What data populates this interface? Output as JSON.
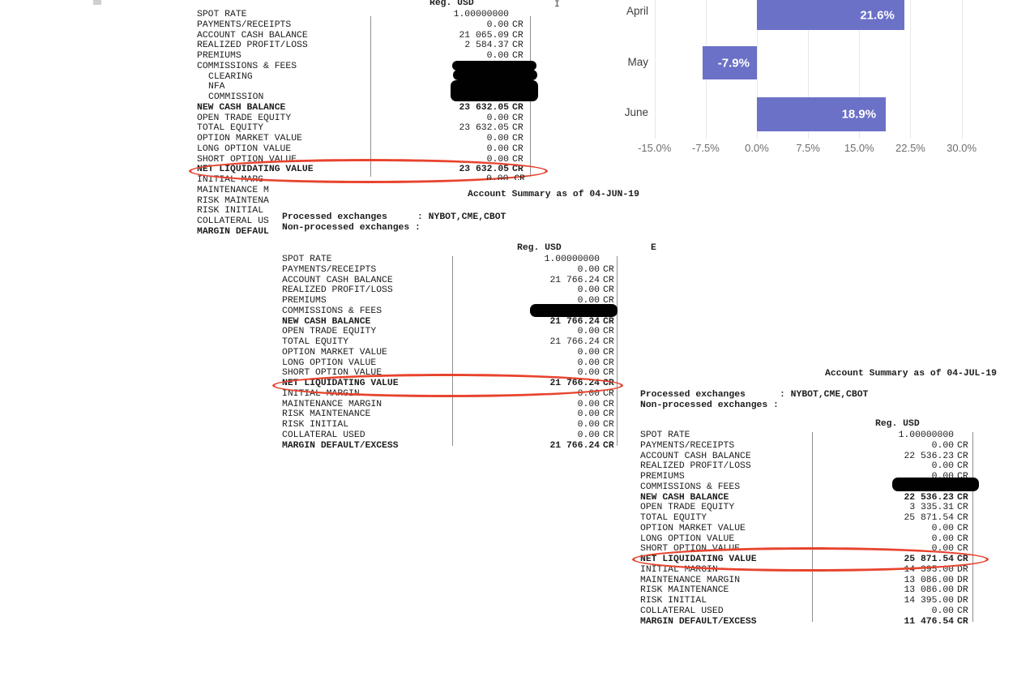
{
  "chart_data": {
    "type": "bar",
    "orientation": "horizontal",
    "title": "",
    "categories": [
      "April",
      "May",
      "June"
    ],
    "values": [
      21.6,
      -7.9,
      18.9
    ],
    "data_labels": [
      "21.6%",
      "-7.9%",
      "18.9%"
    ],
    "x_ticks": [
      "-15.0%",
      "-7.5%",
      "0.0%",
      "7.5%",
      "15.0%",
      "22.5%",
      "30.0%"
    ],
    "x_tick_values": [
      -15,
      -7.5,
      0,
      7.5,
      15,
      22.5,
      30
    ],
    "xlim": [
      -20.5,
      35.5
    ],
    "grid": true,
    "legend": false,
    "bar_color": "#6b71c7",
    "data_label_color": "#ffffff"
  },
  "statements": [
    {
      "title": null,
      "currency_header": "Reg. USD",
      "rows": [
        {
          "label": "SPOT RATE",
          "value": "1.00000000",
          "suffix": ""
        },
        {
          "label": "PAYMENTS/RECEIPTS",
          "value": "0.00",
          "suffix": "CR"
        },
        {
          "label": "ACCOUNT CASH BALANCE",
          "value": "21 065.09",
          "suffix": "CR"
        },
        {
          "label": "REALIZED PROFIT/LOSS",
          "value": "2 584.37",
          "suffix": "CR"
        },
        {
          "label": "PREMIUMS",
          "value": "0.00",
          "suffix": "CR"
        },
        {
          "label": "COMMISSIONS & FEES",
          "redacted": true
        },
        {
          "label": "CLEARING",
          "indent": 1,
          "redacted": true
        },
        {
          "label": "NFA",
          "indent": 1,
          "redacted": true
        },
        {
          "label": "COMMISSION",
          "indent": 1,
          "redacted": true
        },
        {
          "label": "NEW CASH BALANCE",
          "value": "23 632.05",
          "suffix": "CR",
          "bold": true
        },
        {
          "label": "OPEN TRADE EQUITY",
          "value": "0.00",
          "suffix": "CR"
        },
        {
          "label": "TOTAL EQUITY",
          "value": "23 632.05",
          "suffix": "CR"
        },
        {
          "label": "OPTION MARKET VALUE",
          "value": "0.00",
          "suffix": "CR"
        },
        {
          "label": "LONG OPTION VALUE",
          "value": "0.00",
          "suffix": "CR"
        },
        {
          "label": "SHORT OPTION VALUE",
          "value": "0.00",
          "suffix": "CR"
        },
        {
          "label": "NET LIQUIDATING VALUE",
          "value": "23 632.05",
          "suffix": "CR",
          "bold": true,
          "circled": true
        }
      ],
      "truncated_rows": [
        {
          "label": "INITIAL MARG"
        },
        {
          "label": "MAINTENANCE M"
        },
        {
          "label": "RISK MAINTENA"
        },
        {
          "label": "RISK INITIAL"
        },
        {
          "label": "COLLATERAL US"
        },
        {
          "label": "MARGIN DEFAUL",
          "bold": true
        }
      ],
      "clipped_value": "0.00 CR"
    },
    {
      "title": "Account Summary as of 04-JUN-19",
      "processed_label": "Processed exchanges",
      "processed_value": ": NYBOT,CME,CBOT",
      "nonprocessed_label": "Non-processed exchanges :",
      "currency_header": "Reg. USD",
      "partial_char": "E",
      "rows": [
        {
          "label": "SPOT RATE",
          "value": "1.00000000",
          "suffix": ""
        },
        {
          "label": "PAYMENTS/RECEIPTS",
          "value": "0.00",
          "suffix": "CR"
        },
        {
          "label": "ACCOUNT CASH BALANCE",
          "value": "21 766.24",
          "suffix": "CR"
        },
        {
          "label": "REALIZED PROFIT/LOSS",
          "value": "0.00",
          "suffix": "CR"
        },
        {
          "label": "PREMIUMS",
          "value": "0.00",
          "suffix": "CR"
        },
        {
          "label": "COMMISSIONS & FEES",
          "redacted": true
        },
        {
          "label": "NEW CASH BALANCE",
          "value": "21 766.24",
          "suffix": "CR",
          "bold": true
        },
        {
          "label": "OPEN TRADE EQUITY",
          "value": "0.00",
          "suffix": "CR"
        },
        {
          "label": "TOTAL EQUITY",
          "value": "21 766.24",
          "suffix": "CR"
        },
        {
          "label": "OPTION MARKET VALUE",
          "value": "0.00",
          "suffix": "CR"
        },
        {
          "label": "LONG OPTION VALUE",
          "value": "0.00",
          "suffix": "CR"
        },
        {
          "label": "SHORT OPTION VALUE",
          "value": "0.00",
          "suffix": "CR"
        },
        {
          "label": "NET LIQUIDATING VALUE",
          "value": "21 766.24",
          "suffix": "CR",
          "bold": true,
          "circled": true
        },
        {
          "label": "INITIAL MARGIN",
          "value": "0.00",
          "suffix": "CR"
        },
        {
          "label": "MAINTENANCE MARGIN",
          "value": "0.00",
          "suffix": "CR"
        },
        {
          "label": "RISK MAINTENANCE",
          "value": "0.00",
          "suffix": "CR"
        },
        {
          "label": "RISK INITIAL",
          "value": "0.00",
          "suffix": "CR"
        },
        {
          "label": "COLLATERAL USED",
          "value": "0.00",
          "suffix": "CR"
        },
        {
          "label": "MARGIN DEFAULT/EXCESS",
          "value": "21 766.24",
          "suffix": "CR",
          "bold": true
        }
      ]
    },
    {
      "title": "Account Summary as of 04-JUL-19",
      "processed_label": "Processed exchanges",
      "processed_value": ": NYBOT,CME,CBOT",
      "nonprocessed_label": "Non-processed exchanges :",
      "currency_header": "Reg. USD",
      "rows": [
        {
          "label": "SPOT RATE",
          "value": "1.00000000",
          "suffix": ""
        },
        {
          "label": "PAYMENTS/RECEIPTS",
          "value": "0.00",
          "suffix": "CR"
        },
        {
          "label": "ACCOUNT CASH BALANCE",
          "value": "22 536.23",
          "suffix": "CR"
        },
        {
          "label": "REALIZED PROFIT/LOSS",
          "value": "0.00",
          "suffix": "CR"
        },
        {
          "label": "PREMIUMS",
          "value": "0.00",
          "suffix": "CR"
        },
        {
          "label": "COMMISSIONS & FEES",
          "redacted": true
        },
        {
          "label": "NEW CASH BALANCE",
          "value": "22 536.23",
          "suffix": "CR",
          "bold": true
        },
        {
          "label": "OPEN TRADE EQUITY",
          "value": "3 335.31",
          "suffix": "CR"
        },
        {
          "label": "TOTAL EQUITY",
          "value": "25 871.54",
          "suffix": "CR"
        },
        {
          "label": "OPTION MARKET VALUE",
          "value": "0.00",
          "suffix": "CR"
        },
        {
          "label": "LONG OPTION VALUE",
          "value": "0.00",
          "suffix": "CR"
        },
        {
          "label": "SHORT OPTION VALUE",
          "value": "0.00",
          "suffix": "CR"
        },
        {
          "label": "NET LIQUIDATING VALUE",
          "value": "25 871.54",
          "suffix": "CR",
          "bold": true,
          "circled": true
        },
        {
          "label": "INITIAL MARGIN",
          "value": "14 395.00",
          "suffix": "DR"
        },
        {
          "label": "MAINTENANCE MARGIN",
          "value": "13 086.00",
          "suffix": "DR"
        },
        {
          "label": "RISK MAINTENANCE",
          "value": "13 086.00",
          "suffix": "DR"
        },
        {
          "label": "RISK INITIAL",
          "value": "14 395.00",
          "suffix": "DR"
        },
        {
          "label": "COLLATERAL USED",
          "value": "0.00",
          "suffix": "CR"
        },
        {
          "label": "MARGIN DEFAULT/EXCESS",
          "value": "11 476.54",
          "suffix": "CR",
          "bold": true
        }
      ]
    }
  ],
  "artifacts": {
    "top_partial_char": "I"
  }
}
